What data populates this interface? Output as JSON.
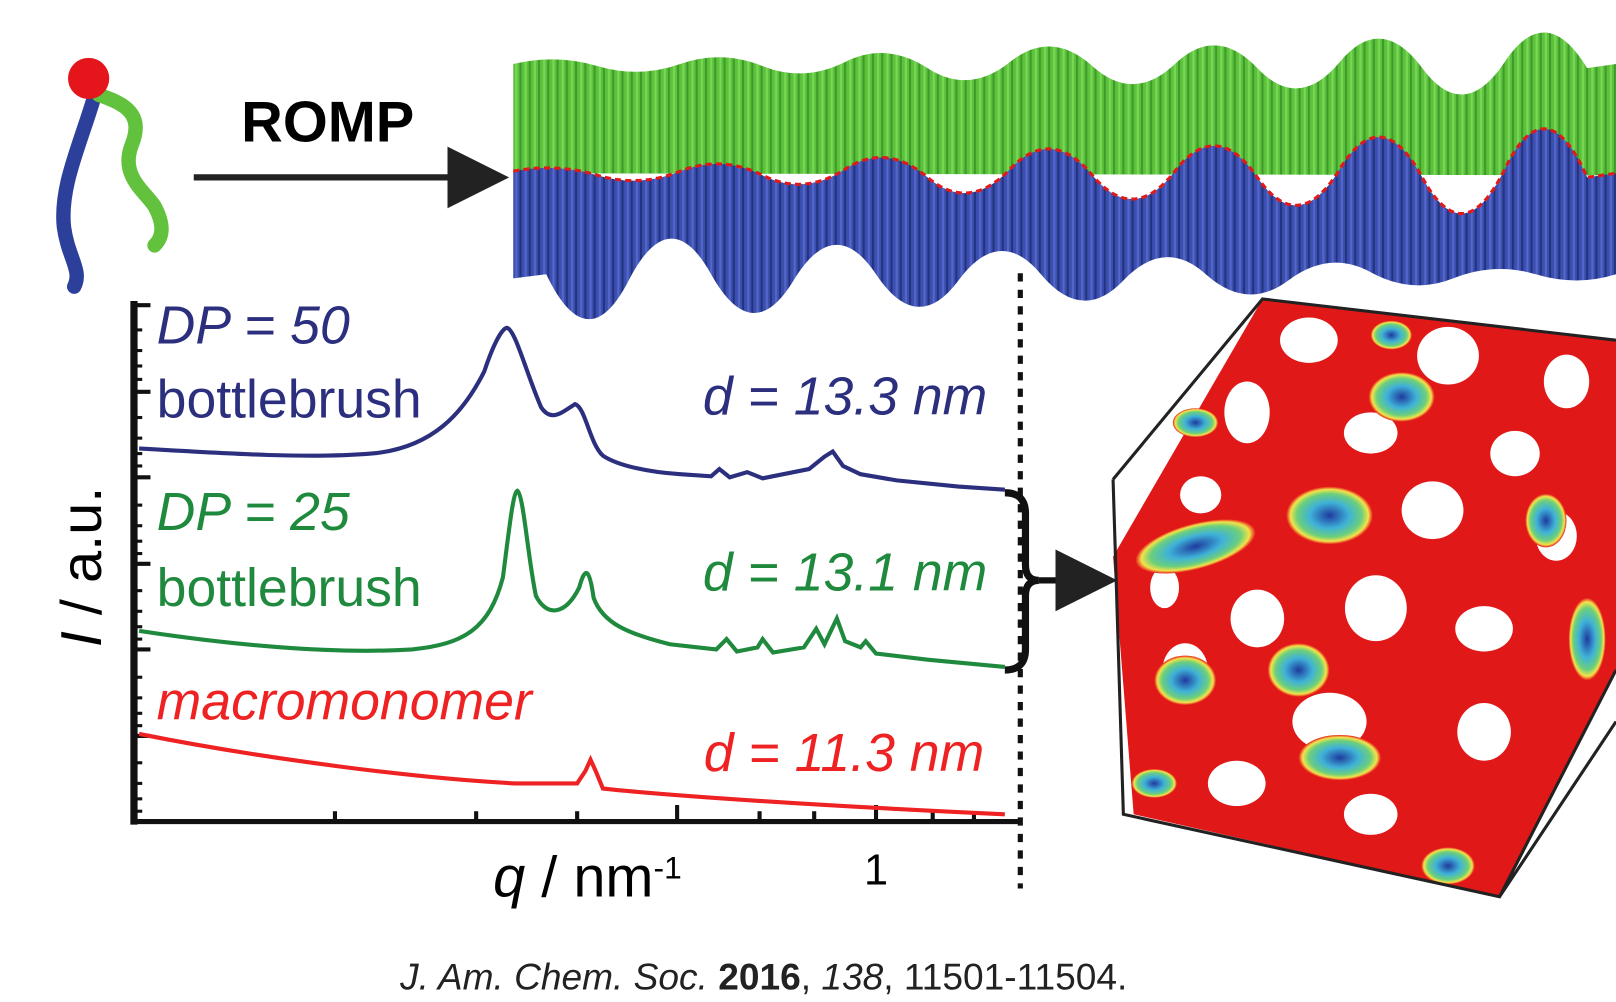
{
  "scheme": {
    "reaction_label": "ROMP"
  },
  "plot": {
    "y_label": [
      {
        "text": "I",
        "style": "italic"
      },
      {
        "text": " / a.u.",
        "style": "normal"
      }
    ],
    "x_label": [
      {
        "text": "q",
        "style": "italic"
      },
      {
        "text": " / nm",
        "style": "normal"
      },
      {
        "text": "-1",
        "style": "superscript"
      }
    ],
    "x_tick": "1",
    "curves": [
      {
        "name": "DP = 50",
        "kind": "bottlebrush",
        "spacing": "d = 13.3 nm",
        "color": "#2b2f7e"
      },
      {
        "name": "DP = 25",
        "kind": "bottlebrush",
        "spacing": "d = 13.1 nm",
        "color": "#1f8a3e"
      },
      {
        "name": "macromonomer",
        "spacing": "d = 11.3 nm",
        "color": "#ee2222"
      }
    ]
  },
  "citation": [
    {
      "text": "J. Am. Chem. Soc. ",
      "style": "italic"
    },
    {
      "text": "2016",
      "style": "bold"
    },
    {
      "text": ", ",
      "style": "normal"
    },
    {
      "text": "138",
      "style": "italic"
    },
    {
      "text": ", 11501-11504.",
      "style": "normal"
    }
  ]
}
